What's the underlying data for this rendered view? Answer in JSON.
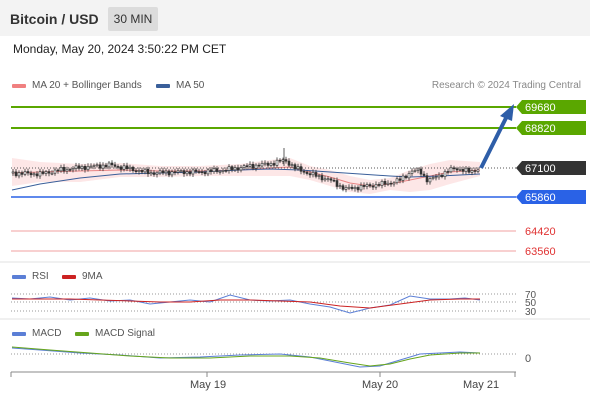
{
  "header": {
    "title": "Bitcoin / USD",
    "timeframe": "30 MIN"
  },
  "datetime": "Monday, May 20, 2024 3:50:22 PM CET",
  "legend": {
    "bollinger": "MA 20 + Bollinger Bands",
    "ma50": "MA 50",
    "credit": "Research © 2024 Trading Central",
    "rsi": "RSI",
    "rsi_ma": "9MA",
    "macd": "MACD",
    "macd_signal": "MACD Signal"
  },
  "levels": {
    "r2": "69680",
    "r1": "68820",
    "current": "67100",
    "pivot": "65860",
    "s1": "64420",
    "s2": "63560"
  },
  "rsi_ticks": {
    "t70": "70",
    "t50": "50",
    "t30": "30"
  },
  "macd_ticks": {
    "zero": "0"
  },
  "x_axis": {
    "d1": "May 19",
    "d2": "May 20",
    "d3": "May 21"
  },
  "colors": {
    "green": "#5aa700",
    "blue": "#2a62e6",
    "red": "#e05555",
    "dark": "#333333",
    "arrow": "#2e5ea8",
    "rsi_line": "#5b7fd6",
    "rsi_ma": "#cc2222",
    "macd_line": "#5b7fd6",
    "signal_line": "#66a51c"
  }
}
